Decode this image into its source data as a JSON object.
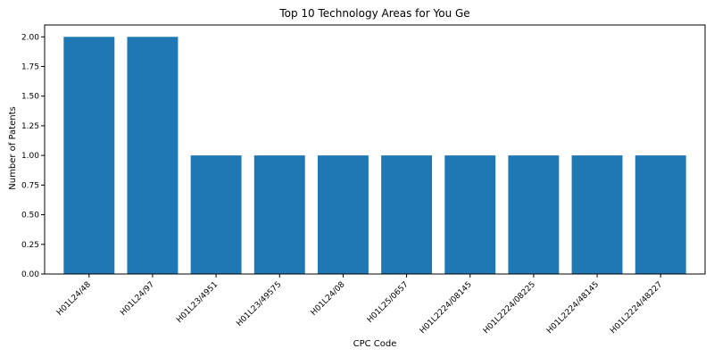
{
  "chart_data": {
    "type": "bar",
    "title": "Top 10 Technology Areas for You Ge",
    "xlabel": "CPC Code",
    "ylabel": "Number of Patents",
    "categories": [
      "H01L24/48",
      "H01L24/97",
      "H01L23/4951",
      "H01L23/49575",
      "H01L24/08",
      "H01L25/0657",
      "H01L2224/08145",
      "H01L2224/08225",
      "H01L2224/48145",
      "H01L2224/48227"
    ],
    "values": [
      2,
      2,
      1,
      1,
      1,
      1,
      1,
      1,
      1,
      1
    ],
    "ylim": [
      0,
      2.1
    ],
    "yticks": [
      "0.00",
      "0.25",
      "0.50",
      "0.75",
      "1.00",
      "1.25",
      "1.50",
      "1.75",
      "2.00"
    ],
    "grid": false,
    "bar_color": "#1f77b4"
  }
}
